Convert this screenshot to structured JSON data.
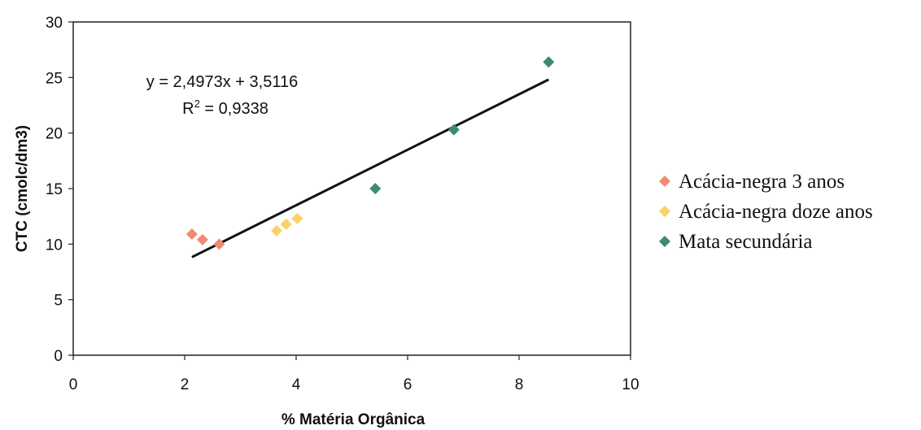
{
  "chart_data": {
    "type": "scatter",
    "xlabel": "% Matéria Orgânica",
    "ylabel": "CTC (cmolc/dm3)",
    "xlim": [
      0,
      10
    ],
    "ylim": [
      0,
      30
    ],
    "x_ticks": [
      0,
      2,
      4,
      6,
      8,
      10
    ],
    "y_ticks": [
      0,
      5,
      10,
      15,
      20,
      25,
      30
    ],
    "grid": false,
    "legend_position": "right",
    "series": [
      {
        "name": "Acácia-negra 3 anos",
        "color": "#ef8b72",
        "marker": "diamond",
        "points": [
          [
            2.13,
            10.9
          ],
          [
            2.32,
            10.4
          ],
          [
            2.62,
            10.0
          ]
        ]
      },
      {
        "name": "Acácia-negra doze anos",
        "color": "#fbd06a",
        "marker": "diamond",
        "points": [
          [
            3.65,
            11.2
          ],
          [
            3.82,
            11.8
          ],
          [
            4.02,
            12.3
          ]
        ]
      },
      {
        "name": "Mata secundária",
        "color": "#3e8a72",
        "marker": "diamond",
        "points": [
          [
            5.42,
            15.0
          ],
          [
            6.83,
            20.3
          ],
          [
            8.53,
            26.4
          ]
        ]
      }
    ],
    "trendline": {
      "slope": 2.4973,
      "intercept": 3.5116,
      "x_range": [
        2.13,
        8.53
      ],
      "color": "#111111",
      "equation": "y = 2,4973x + 3,5116",
      "r2_prefix": "R",
      "r2_sup": "2",
      "r2_value": " = 0,9338"
    }
  }
}
